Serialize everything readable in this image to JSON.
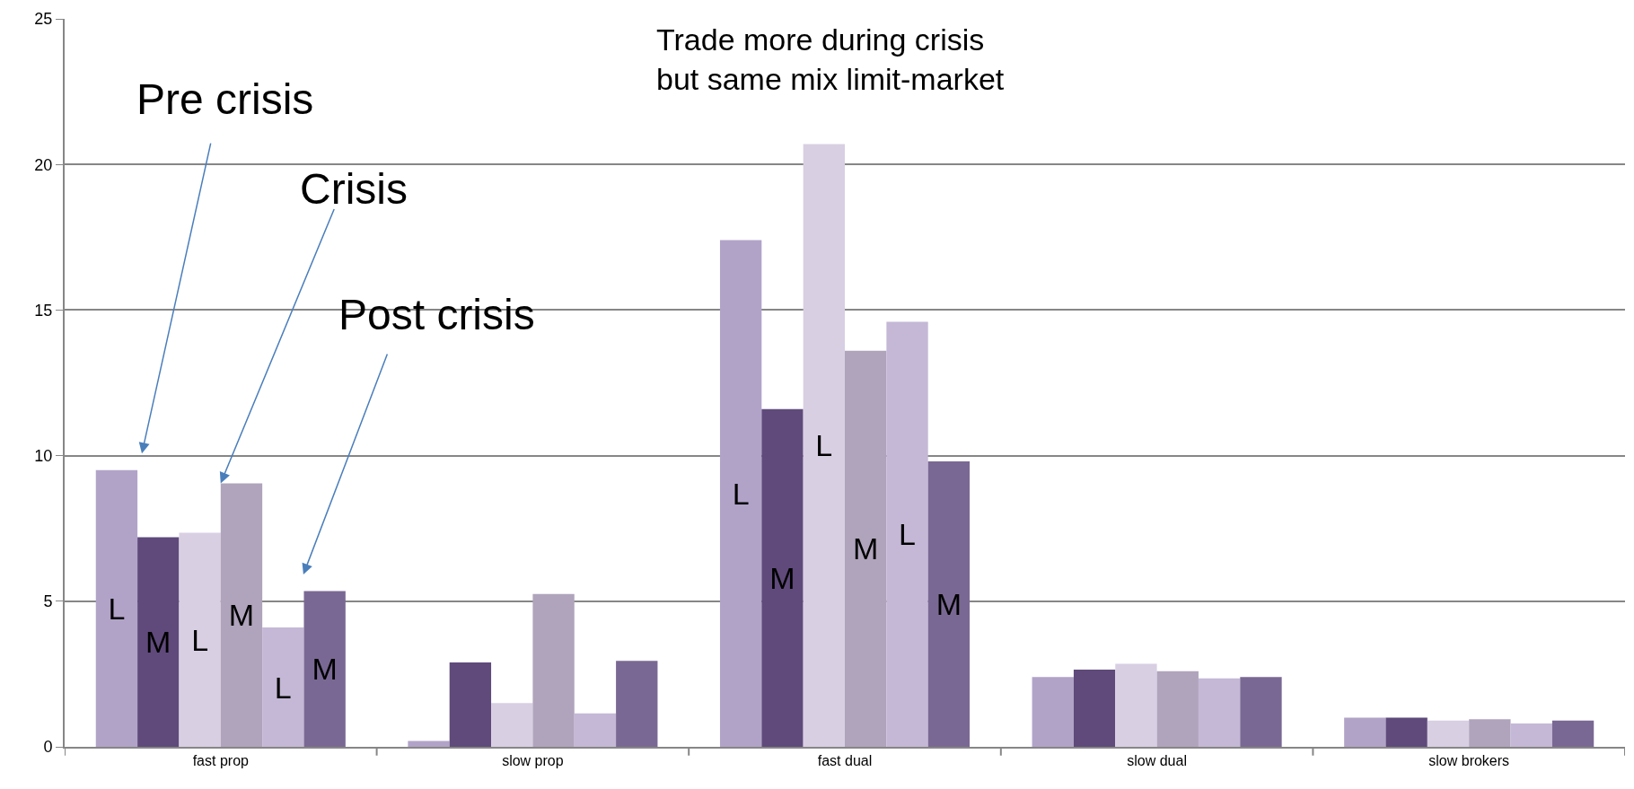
{
  "chart_data": {
    "type": "bar",
    "categories": [
      "fast prop",
      "slow prop",
      "fast dual",
      "slow dual",
      "slow brokers"
    ],
    "series": [
      {
        "color": "#b1a3c8",
        "values": [
          9.5,
          0.2,
          17.4,
          2.4,
          1.0
        ],
        "value_labels": [
          "L",
          null,
          "L",
          null,
          null
        ]
      },
      {
        "color": "#5f4a7b",
        "values": [
          7.2,
          2.9,
          11.6,
          2.65,
          1.0
        ],
        "value_labels": [
          "M",
          null,
          "M",
          null,
          null
        ]
      },
      {
        "color": "#d8cfe3",
        "values": [
          7.35,
          1.5,
          20.7,
          2.85,
          0.9
        ],
        "value_labels": [
          "L",
          null,
          "L",
          null,
          null
        ]
      },
      {
        "color": "#b0a4bc",
        "values": [
          9.05,
          5.25,
          13.6,
          2.6,
          0.95
        ],
        "value_labels": [
          "M",
          null,
          "M",
          null,
          null
        ]
      },
      {
        "color": "#c4b8d6",
        "values": [
          4.1,
          1.15,
          14.6,
          2.35,
          0.8
        ],
        "value_labels": [
          "L",
          null,
          "L",
          null,
          null
        ]
      },
      {
        "color": "#7a6894",
        "values": [
          5.35,
          2.95,
          9.8,
          2.4,
          0.9
        ],
        "value_labels": [
          "M",
          null,
          "M",
          null,
          null
        ]
      }
    ],
    "ylim": [
      0,
      25
    ],
    "yticks": [
      0,
      5,
      10,
      15,
      20,
      25
    ],
    "grid": "y",
    "annotations": [
      "Pre crisis",
      {
        "text": "Crisis",
        "x": "fast prop",
        "y": 9.05
      },
      "Post crisis",
      "Trade more during crisis\nbut same mix limit-market"
    ]
  }
}
